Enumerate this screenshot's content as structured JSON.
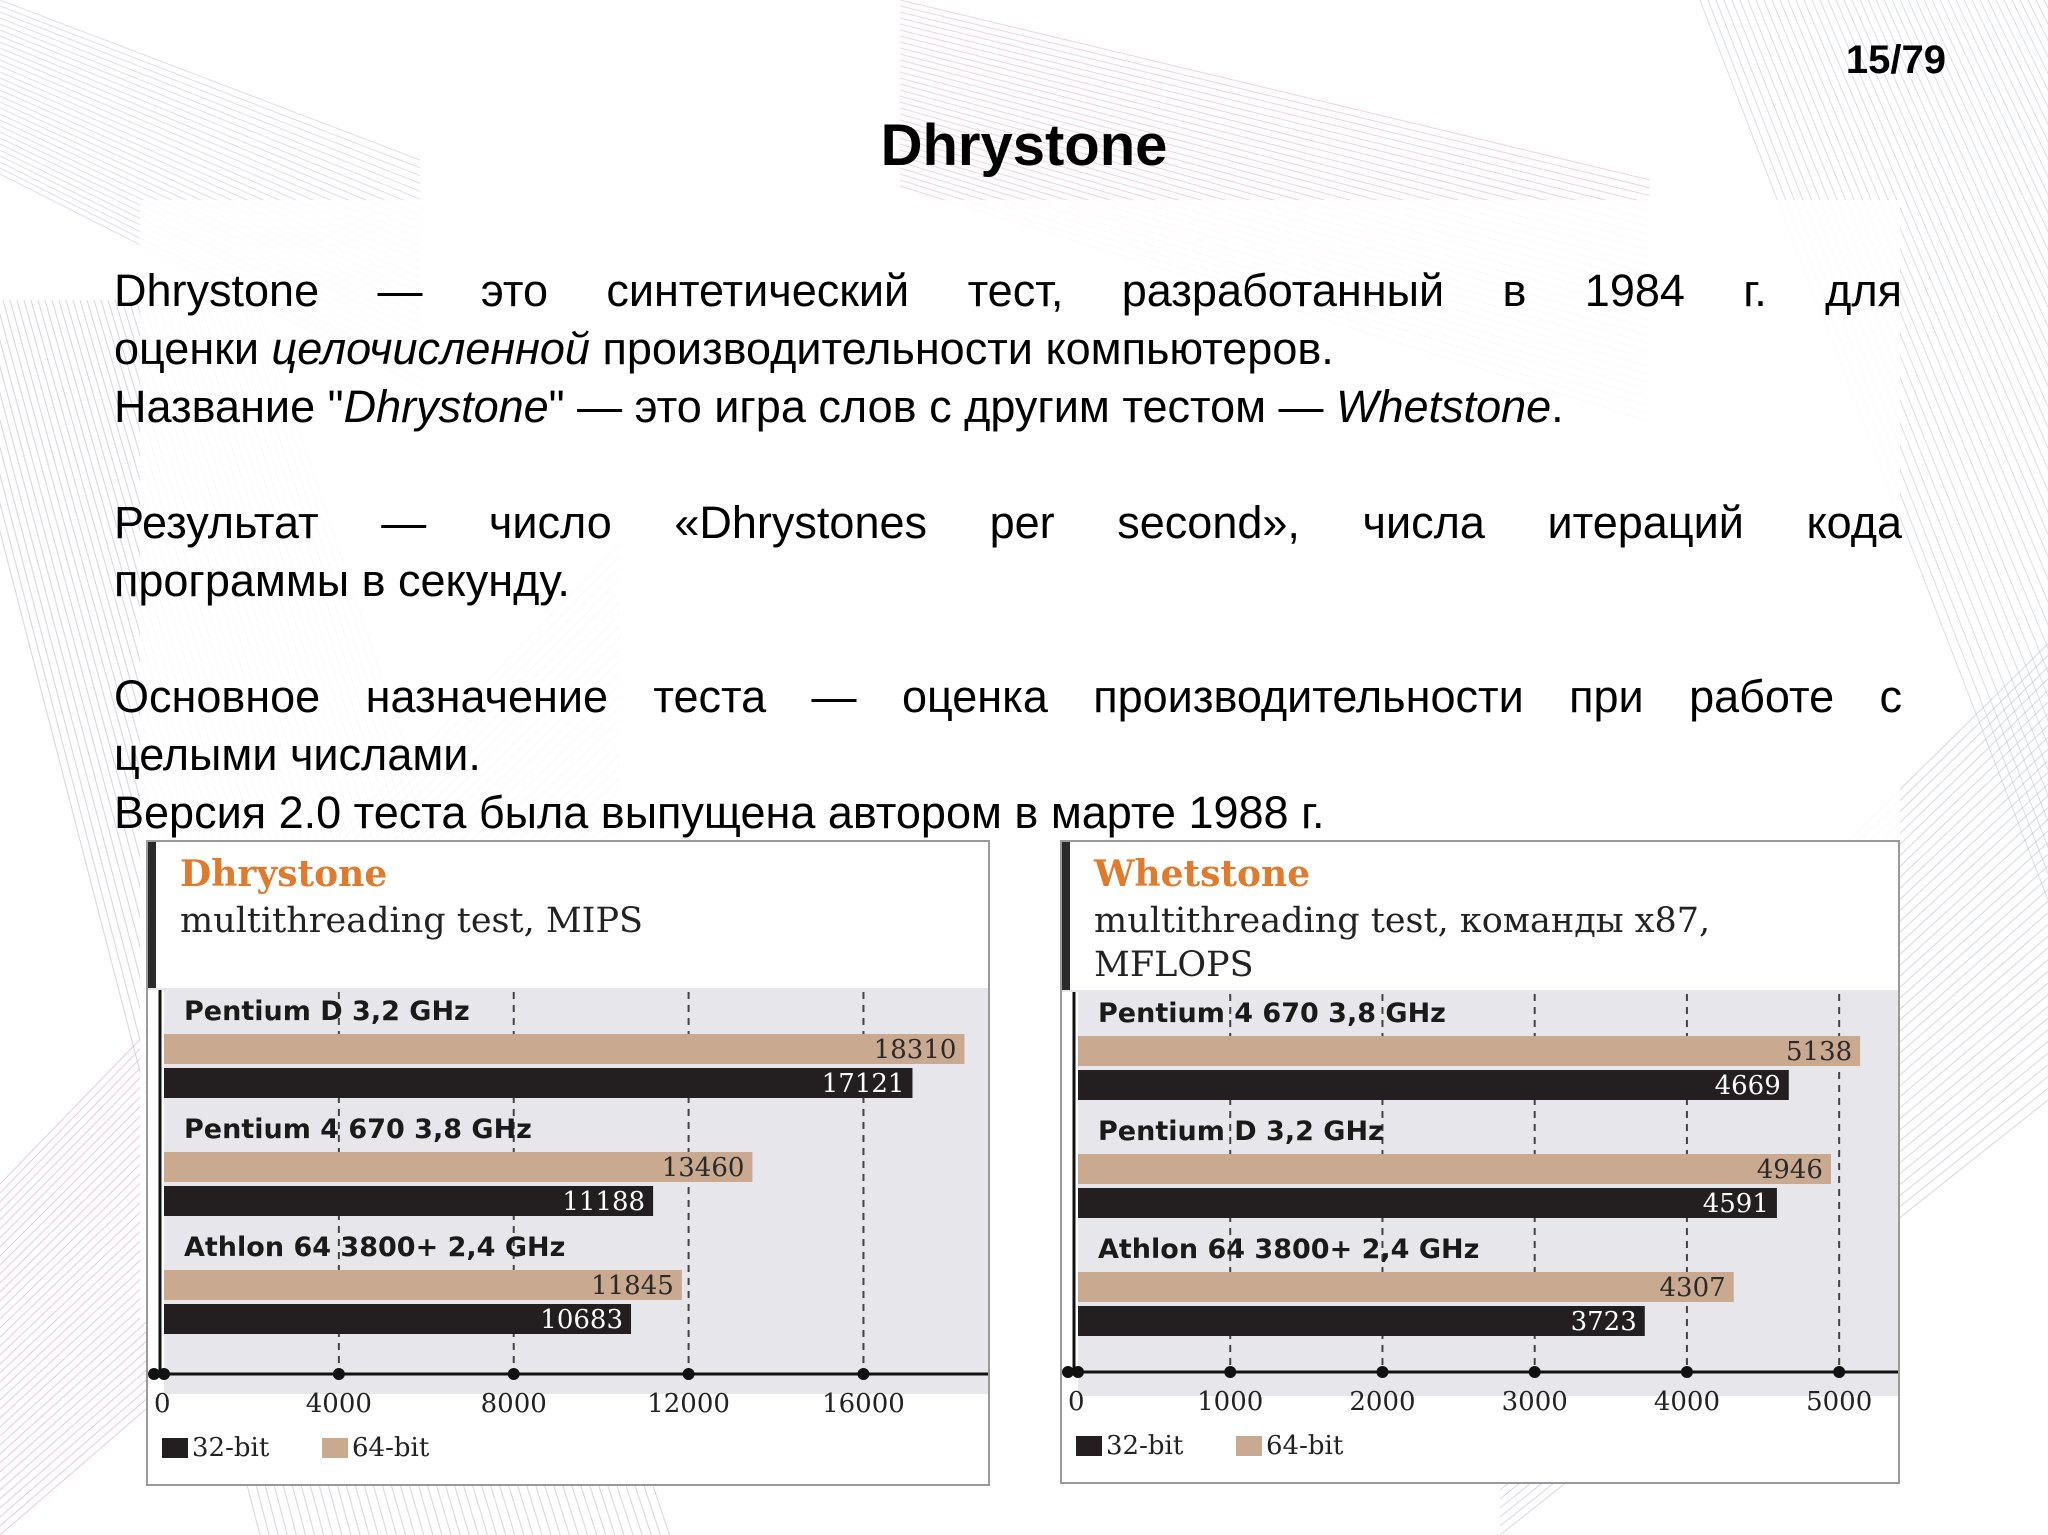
{
  "page_number": "15/79",
  "title": "Dhrystone",
  "body": {
    "p1": {
      "line1": "Dhrystone — это синтетический тест, разработанный в  1984 г. для",
      "line2_pre": "оценки ",
      "line2_em": "целочисленной",
      "line2_post": " производительности компьютеров."
    },
    "p2": {
      "pre": "Название \"",
      "em1": "Dhrystone",
      "mid": "\" — это игра слов с другим тестом — ",
      "em2": "Whetstone",
      "post": "."
    },
    "p3": {
      "line1": "Результат — число «Dhrystones per second», числа итераций кода",
      "line2": "программы в секунду."
    },
    "p4": {
      "line1": "Основное назначение теста — оценка производительности при работе с",
      "line2": "целыми числами."
    },
    "p5": "Версия 2.0 теста была выпущена автором в марте 1988 г."
  },
  "colors": {
    "accent": "#e07a2c",
    "bar_32": "#231f20",
    "bar_64": "#c9a98f",
    "plot_bg": "#e7e6ea",
    "frame_bar": "#2a2a2a"
  },
  "chart_data": [
    {
      "type": "bar",
      "orientation": "horizontal",
      "title": "Dhrystone",
      "subtitle_lines": [
        "multithreading test, MIPS"
      ],
      "categories": [
        "Pentium D 3,2 GHz",
        "Pentium 4 670 3,8 GHz",
        "Athlon 64 3800+ 2,4 GHz"
      ],
      "series": [
        {
          "name": "64-bit",
          "values": [
            18310,
            13460,
            11845
          ]
        },
        {
          "name": "32-bit",
          "values": [
            17121,
            11188,
            10683
          ]
        }
      ],
      "xlim": [
        0,
        18300
      ],
      "xticks": [
        0,
        4000,
        8000,
        12000,
        16000
      ],
      "legend": [
        "32-bit",
        "64-bit"
      ],
      "legend_position": "bottom-left",
      "grid": "vertical dashed"
    },
    {
      "type": "bar",
      "orientation": "horizontal",
      "title": "Whetstone",
      "subtitle_lines": [
        "multithreading test, команды x87,",
        "MFLOPS"
      ],
      "categories": [
        "Pentium 4 670 3,8 GHz",
        "Pentium D 3,2 GHz",
        "Athlon 64 3800+ 2,4 GHz"
      ],
      "series": [
        {
          "name": "64-bit",
          "values": [
            5138,
            4946,
            4307
          ]
        },
        {
          "name": "32-bit",
          "values": [
            4669,
            4591,
            3723
          ]
        }
      ],
      "xlim": [
        0,
        5150
      ],
      "xticks": [
        0,
        1000,
        2000,
        3000,
        4000,
        5000
      ],
      "legend": [
        "32-bit",
        "64-bit"
      ],
      "legend_position": "bottom-left",
      "grid": "vertical dashed"
    }
  ]
}
